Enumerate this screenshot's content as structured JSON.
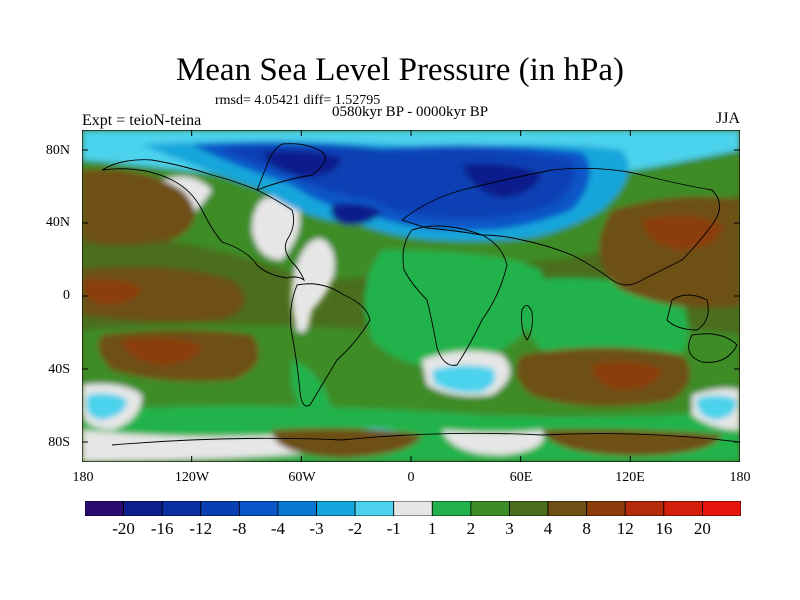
{
  "title": "Mean Sea Level Pressure (in hPa)",
  "stats": "rmsd= 4.05421 diff= 1.52795",
  "left_label": "Expt = teioN-teina",
  "center_label": "0580kyr BP - 0000kyr BP",
  "right_label": "JJA",
  "y_ticks": [
    "80N",
    "40N",
    "0",
    "40S",
    "80S"
  ],
  "x_ticks": [
    "180",
    "120W",
    "60W",
    "0",
    "60E",
    "120E",
    "180"
  ],
  "colorbar": {
    "labels": [
      "-20",
      "-16",
      "-12",
      "-8",
      "-4",
      "-3",
      "-2",
      "-1",
      "1",
      "2",
      "3",
      "4",
      "8",
      "12",
      "16",
      "20"
    ],
    "colors": [
      "#2a0a6e",
      "#0b1e8c",
      "#0a2fa0",
      "#0a3fb4",
      "#0a55c8",
      "#0a78d2",
      "#14a6dc",
      "#4cd2ec",
      "#e6e6e6",
      "#21b24b",
      "#3c8c28",
      "#4b6e1e",
      "#6e5014",
      "#8c3c0a",
      "#b42a0a",
      "#d21e0a",
      "#e6140a"
    ]
  },
  "map_colors": {
    "ocean_base": "#4b6e1e",
    "green": "#21b24b",
    "light_green": "#3c8c28",
    "white": "#e6e6e6",
    "cyan": "#4cd2ec",
    "light_blue": "#14a6dc",
    "mid_blue": "#0a55c8",
    "dark_blue": "#0a3fb4",
    "deep_blue": "#0b1e8c",
    "brown": "#6e5014",
    "rust": "#8c3c0a",
    "coast": "#000000"
  }
}
